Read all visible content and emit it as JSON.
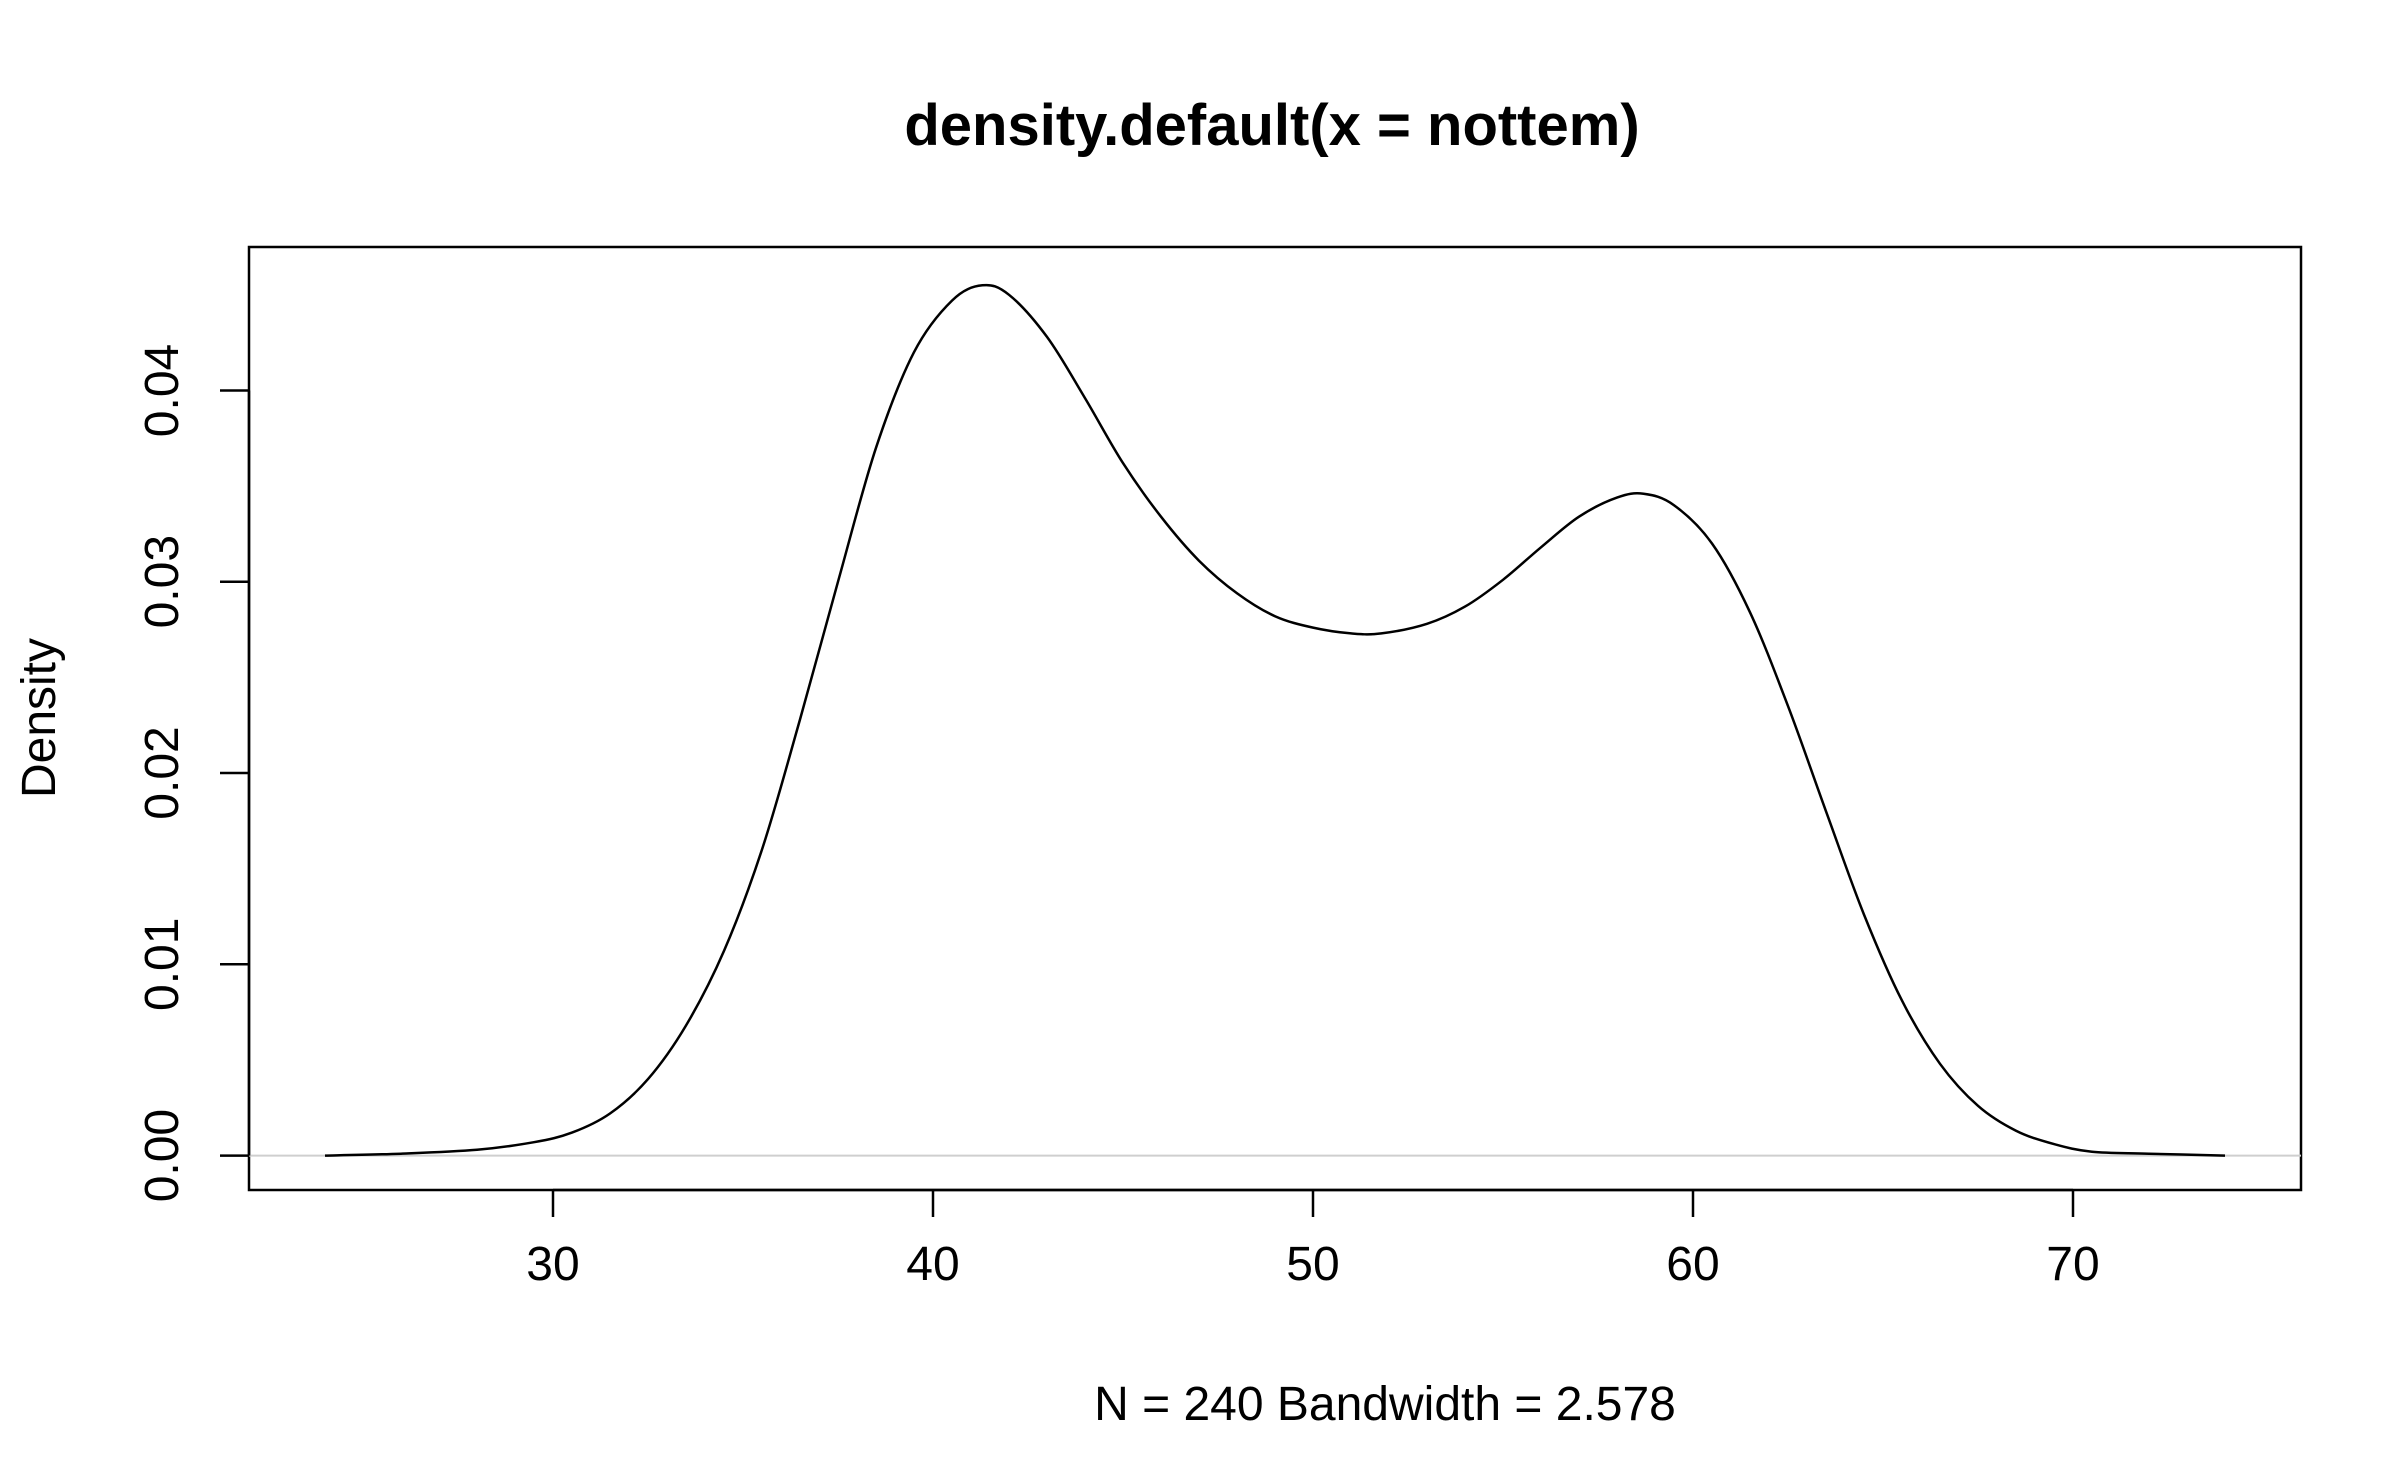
{
  "chart_data": {
    "type": "line",
    "title": "density.default(x = nottem)",
    "xlabel": "N = 240   Bandwidth = 2.578",
    "ylabel": "Density",
    "xlim": [
      22,
      76
    ],
    "ylim": [
      -0.0018,
      0.0475
    ],
    "x_ticks": [
      30,
      40,
      50,
      60,
      70
    ],
    "y_ticks": [
      0.0,
      0.01,
      0.02,
      0.03,
      0.04
    ],
    "y_tick_labels": [
      "0.00",
      "0.01",
      "0.02",
      "0.03",
      "0.04"
    ],
    "reference_line": 0,
    "series": [
      {
        "x": [
          24.0,
          26.0,
          28.0,
          29.5,
          30.5,
          31.5,
          32.5,
          33.5,
          34.5,
          35.5,
          36.5,
          37.5,
          38.5,
          39.5,
          40.5,
          41.3,
          42.0,
          43.0,
          44.0,
          45.0,
          46.0,
          47.0,
          48.0,
          49.0,
          50.0,
          51.0,
          51.8,
          53.0,
          54.0,
          55.0,
          56.0,
          57.0,
          58.0,
          58.7,
          59.5,
          60.5,
          61.5,
          62.5,
          63.5,
          64.5,
          65.5,
          66.5,
          67.5,
          68.5,
          69.5,
          70.5,
          72.0,
          74.0
        ],
        "y": [
          0.0,
          0.0001,
          0.0003,
          0.0007,
          0.0012,
          0.0022,
          0.004,
          0.0068,
          0.0107,
          0.016,
          0.0228,
          0.03,
          0.037,
          0.042,
          0.0447,
          0.0455,
          0.045,
          0.0428,
          0.0396,
          0.0362,
          0.0334,
          0.0311,
          0.0294,
          0.0282,
          0.0276,
          0.0273,
          0.0273,
          0.0278,
          0.0287,
          0.0301,
          0.0318,
          0.0334,
          0.0344,
          0.0346,
          0.034,
          0.032,
          0.0284,
          0.0235,
          0.018,
          0.0126,
          0.0081,
          0.0048,
          0.0026,
          0.0013,
          0.0006,
          0.0002,
          0.0001,
          0.0
        ]
      }
    ]
  }
}
